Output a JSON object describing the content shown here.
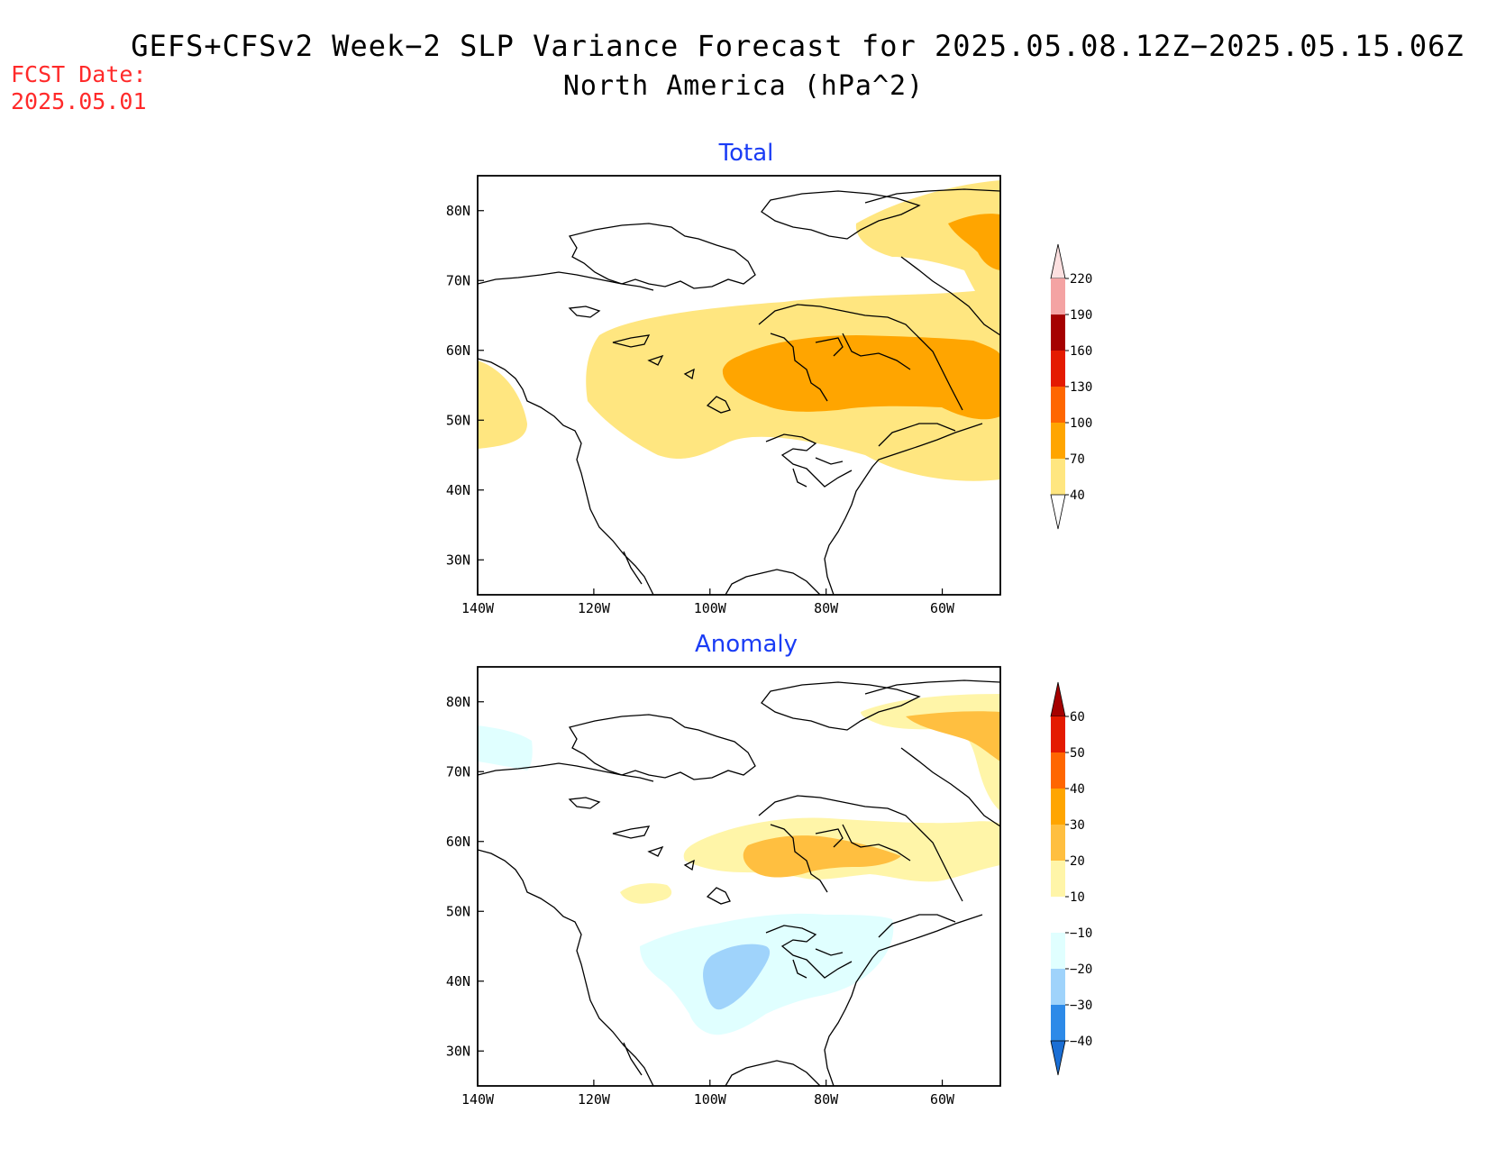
{
  "header": {
    "title_line1": "GEFS+CFSv2 Week−2 SLP Variance Forecast for 2025.05.08.12Z−2025.05.15.06Z",
    "title_line2": "North America (hPa^2)",
    "fcst_label": "FCST Date:",
    "fcst_value": "2025.05.01"
  },
  "map": {
    "lon_range": [
      -140,
      -50
    ],
    "lat_range": [
      25,
      85
    ],
    "lat_ticks": [
      "80N",
      "70N",
      "60N",
      "50N",
      "40N",
      "30N"
    ],
    "lon_ticks": [
      "140W",
      "120W",
      "100W",
      "80W",
      "60W"
    ]
  },
  "panels": [
    {
      "title": "Total",
      "colorbar": {
        "labels": [
          "220",
          "190",
          "160",
          "130",
          "100",
          "70",
          "40"
        ],
        "colors": [
          "#fde0e0",
          "#f4a3a3",
          "#a50000",
          "#e41a00",
          "#ff6600",
          "#ffa500",
          "#ffe680"
        ]
      }
    },
    {
      "title": "Anomaly",
      "colorbar": {
        "labels": [
          "60",
          "50",
          "40",
          "30",
          "20",
          "10",
          "−10",
          "−20",
          "−30",
          "−40"
        ],
        "colors": [
          "#a50000",
          "#e41a00",
          "#ff6600",
          "#ffa500",
          "#ffbf40",
          "#fff5a8",
          "#ffffff",
          "#e0ffff",
          "#9fd3fb",
          "#2d8ae8",
          "#1a6ed4"
        ]
      }
    }
  ],
  "colors": {
    "light_yellow": "#ffe680",
    "orange": "#ffa500",
    "pale_yellow": "#fff5a8",
    "light_orange": "#ffbf40",
    "pale_cyan": "#e0ffff",
    "light_blue": "#9fd3fb"
  }
}
